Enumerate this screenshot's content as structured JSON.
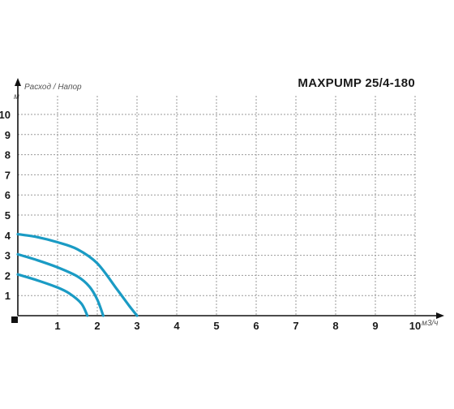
{
  "title": "MAXPUMP 25/4-180",
  "subtitle": "Расход / Напор",
  "chart_data": {
    "type": "line",
    "title": "MAXPUMP 25/4-180",
    "subtitle": "Расход / Напор",
    "xlabel": "м3/ч",
    "ylabel": "м",
    "xlim": [
      0,
      10
    ],
    "ylim": [
      0,
      10.5
    ],
    "x_ticks": [
      "1",
      "2",
      "3",
      "4",
      "5",
      "6",
      "7",
      "8",
      "9",
      "10"
    ],
    "y_ticks": [
      "1",
      "2",
      "3",
      "4",
      "5",
      "6",
      "7",
      "8",
      "9",
      "10"
    ],
    "grid": true,
    "line_color": "#1a9bc4",
    "series": [
      {
        "x": [
          0,
          0.5,
          1.0,
          1.5,
          2.0,
          2.5,
          2.8,
          3.0
        ],
        "y": [
          4.05,
          3.9,
          3.65,
          3.3,
          2.6,
          1.3,
          0.5,
          0.0
        ]
      },
      {
        "x": [
          0,
          0.5,
          1.0,
          1.5,
          1.8,
          2.0,
          2.15
        ],
        "y": [
          3.05,
          2.75,
          2.4,
          1.95,
          1.45,
          0.8,
          0.0
        ]
      },
      {
        "x": [
          0,
          0.5,
          1.0,
          1.3,
          1.6,
          1.75
        ],
        "y": [
          2.05,
          1.75,
          1.4,
          1.1,
          0.6,
          0.0
        ]
      }
    ]
  }
}
